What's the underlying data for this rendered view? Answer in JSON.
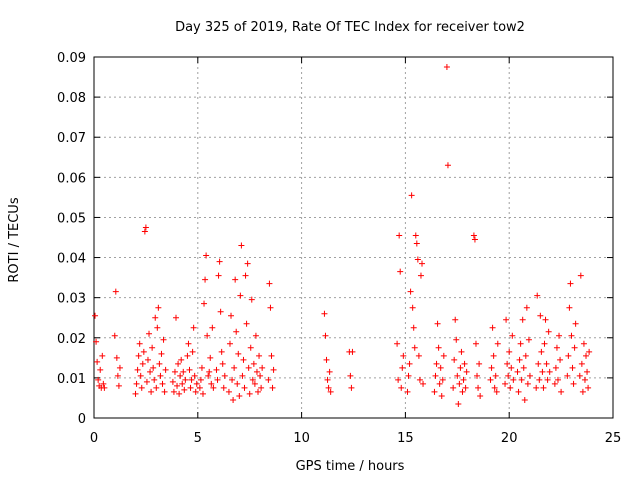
{
  "chart_data": {
    "type": "scatter",
    "title": "Day 325 of 2019, Rate Of TEC Index for receiver tow2",
    "xlabel": "GPS time / hours",
    "ylabel": "ROTI / TECUs",
    "xlim": [
      0,
      25
    ],
    "ylim": [
      0,
      0.09
    ],
    "grid": true,
    "marker": "+",
    "color": "#ff0000",
    "x_ticks": [
      {
        "value": 0,
        "label": "0"
      },
      {
        "value": 5,
        "label": "5"
      },
      {
        "value": 10,
        "label": "10"
      },
      {
        "value": 15,
        "label": "15"
      },
      {
        "value": 20,
        "label": "20"
      },
      {
        "value": 25,
        "label": "25"
      }
    ],
    "y_ticks": [
      {
        "value": 0,
        "label": "0"
      },
      {
        "value": 0.01,
        "label": "0.01"
      },
      {
        "value": 0.02,
        "label": "0.02"
      },
      {
        "value": 0.03,
        "label": "0.03"
      },
      {
        "value": 0.04,
        "label": "0.04"
      },
      {
        "value": 0.05,
        "label": "0.05"
      },
      {
        "value": 0.06,
        "label": "0.06"
      },
      {
        "value": 0.07,
        "label": "0.07"
      },
      {
        "value": 0.08,
        "label": "0.08"
      },
      {
        "value": 0.09,
        "label": "0.09"
      }
    ],
    "series": [
      {
        "name": "ROTI",
        "points": [
          [
            0.05,
            0.0255
          ],
          [
            0.1,
            0.019
          ],
          [
            0.15,
            0.014
          ],
          [
            0.2,
            0.0095
          ],
          [
            0.25,
            0.008
          ],
          [
            0.3,
            0.012
          ],
          [
            0.35,
            0.0075
          ],
          [
            0.4,
            0.0155
          ],
          [
            0.45,
            0.0085
          ],
          [
            0.5,
            0.0075
          ],
          [
            1.0,
            0.0205
          ],
          [
            1.05,
            0.0315
          ],
          [
            1.1,
            0.015
          ],
          [
            1.15,
            0.0105
          ],
          [
            1.2,
            0.008
          ],
          [
            1.25,
            0.0125
          ],
          [
            2.0,
            0.006
          ],
          [
            2.05,
            0.0085
          ],
          [
            2.1,
            0.012
          ],
          [
            2.15,
            0.0155
          ],
          [
            2.2,
            0.0185
          ],
          [
            2.25,
            0.0105
          ],
          [
            2.3,
            0.0075
          ],
          [
            2.35,
            0.0135
          ],
          [
            2.4,
            0.0165
          ],
          [
            2.45,
            0.0465
          ],
          [
            2.5,
            0.0475
          ],
          [
            2.55,
            0.009
          ],
          [
            2.6,
            0.0145
          ],
          [
            2.65,
            0.021
          ],
          [
            2.7,
            0.0115
          ],
          [
            2.75,
            0.0065
          ],
          [
            2.8,
            0.0175
          ],
          [
            2.85,
            0.0125
          ],
          [
            2.9,
            0.0095
          ],
          [
            2.95,
            0.025
          ],
          [
            3.0,
            0.0075
          ],
          [
            3.05,
            0.0225
          ],
          [
            3.1,
            0.0275
          ],
          [
            3.15,
            0.0135
          ],
          [
            3.2,
            0.0105
          ],
          [
            3.25,
            0.016
          ],
          [
            3.3,
            0.0085
          ],
          [
            3.35,
            0.0195
          ],
          [
            3.4,
            0.0065
          ],
          [
            3.45,
            0.012
          ],
          [
            3.8,
            0.009
          ],
          [
            3.85,
            0.0065
          ],
          [
            3.9,
            0.0115
          ],
          [
            3.95,
            0.025
          ],
          [
            4.0,
            0.008
          ],
          [
            4.05,
            0.0135
          ],
          [
            4.1,
            0.006
          ],
          [
            4.15,
            0.0105
          ],
          [
            4.2,
            0.0145
          ],
          [
            4.25,
            0.0085
          ],
          [
            4.3,
            0.0115
          ],
          [
            4.35,
            0.007
          ],
          [
            4.4,
            0.0095
          ],
          [
            4.5,
            0.0155
          ],
          [
            4.55,
            0.0185
          ],
          [
            4.6,
            0.012
          ],
          [
            4.65,
            0.0075
          ],
          [
            4.7,
            0.0095
          ],
          [
            4.75,
            0.0165
          ],
          [
            4.8,
            0.0225
          ],
          [
            4.85,
            0.0105
          ],
          [
            4.9,
            0.0065
          ],
          [
            4.95,
            0.0085
          ],
          [
            5.1,
            0.0075
          ],
          [
            5.15,
            0.0095
          ],
          [
            5.2,
            0.0125
          ],
          [
            5.25,
            0.006
          ],
          [
            5.3,
            0.0285
          ],
          [
            5.35,
            0.0345
          ],
          [
            5.4,
            0.0405
          ],
          [
            5.45,
            0.0205
          ],
          [
            5.5,
            0.0105
          ],
          [
            5.55,
            0.0115
          ],
          [
            5.6,
            0.015
          ],
          [
            5.65,
            0.0085
          ],
          [
            5.7,
            0.0225
          ],
          [
            5.75,
            0.0075
          ],
          [
            5.9,
            0.012
          ],
          [
            5.95,
            0.0095
          ],
          [
            6.0,
            0.0355
          ],
          [
            6.05,
            0.039
          ],
          [
            6.1,
            0.0265
          ],
          [
            6.15,
            0.0165
          ],
          [
            6.2,
            0.0135
          ],
          [
            6.25,
            0.0075
          ],
          [
            6.3,
            0.0105
          ],
          [
            6.5,
            0.0065
          ],
          [
            6.55,
            0.0185
          ],
          [
            6.6,
            0.0255
          ],
          [
            6.65,
            0.0095
          ],
          [
            6.7,
            0.0045
          ],
          [
            6.75,
            0.0125
          ],
          [
            6.8,
            0.0345
          ],
          [
            6.85,
            0.0215
          ],
          [
            6.9,
            0.0085
          ],
          [
            6.95,
            0.016
          ],
          [
            7.0,
            0.0055
          ],
          [
            7.05,
            0.0305
          ],
          [
            7.1,
            0.043
          ],
          [
            7.15,
            0.0105
          ],
          [
            7.2,
            0.0145
          ],
          [
            7.25,
            0.0075
          ],
          [
            7.3,
            0.0355
          ],
          [
            7.35,
            0.0235
          ],
          [
            7.4,
            0.0385
          ],
          [
            7.45,
            0.0125
          ],
          [
            7.5,
            0.006
          ],
          [
            7.55,
            0.0175
          ],
          [
            7.6,
            0.0295
          ],
          [
            7.65,
            0.0095
          ],
          [
            7.7,
            0.0135
          ],
          [
            7.75,
            0.0085
          ],
          [
            7.8,
            0.0205
          ],
          [
            7.85,
            0.0115
          ],
          [
            7.9,
            0.0065
          ],
          [
            7.95,
            0.0155
          ],
          [
            8.0,
            0.0105
          ],
          [
            8.05,
            0.0075
          ],
          [
            8.1,
            0.0125
          ],
          [
            8.4,
            0.0095
          ],
          [
            8.45,
            0.0335
          ],
          [
            8.5,
            0.0275
          ],
          [
            8.55,
            0.0155
          ],
          [
            8.6,
            0.0075
          ],
          [
            8.65,
            0.012
          ],
          [
            11.1,
            0.026
          ],
          [
            11.15,
            0.0205
          ],
          [
            11.2,
            0.0145
          ],
          [
            11.25,
            0.0095
          ],
          [
            11.3,
            0.0075
          ],
          [
            11.35,
            0.0115
          ],
          [
            11.4,
            0.0065
          ],
          [
            12.3,
            0.0165
          ],
          [
            12.35,
            0.0105
          ],
          [
            12.4,
            0.0075
          ],
          [
            12.45,
            0.0165
          ],
          [
            14.6,
            0.0185
          ],
          [
            14.65,
            0.0095
          ],
          [
            14.7,
            0.0455
          ],
          [
            14.75,
            0.0365
          ],
          [
            14.8,
            0.0075
          ],
          [
            14.85,
            0.0125
          ],
          [
            14.9,
            0.0155
          ],
          [
            15.1,
            0.0065
          ],
          [
            15.15,
            0.0105
          ],
          [
            15.2,
            0.0135
          ],
          [
            15.25,
            0.0315
          ],
          [
            15.3,
            0.0555
          ],
          [
            15.35,
            0.0275
          ],
          [
            15.4,
            0.0225
          ],
          [
            15.45,
            0.0175
          ],
          [
            15.5,
            0.0455
          ],
          [
            15.55,
            0.0435
          ],
          [
            15.6,
            0.0395
          ],
          [
            15.65,
            0.0155
          ],
          [
            15.7,
            0.0095
          ],
          [
            15.75,
            0.0355
          ],
          [
            15.8,
            0.0385
          ],
          [
            15.85,
            0.0085
          ],
          [
            16.4,
            0.0065
          ],
          [
            16.45,
            0.0105
          ],
          [
            16.5,
            0.0135
          ],
          [
            16.55,
            0.0235
          ],
          [
            16.6,
            0.0175
          ],
          [
            16.65,
            0.0085
          ],
          [
            16.7,
            0.0125
          ],
          [
            16.75,
            0.0055
          ],
          [
            16.8,
            0.0095
          ],
          [
            16.85,
            0.0155
          ],
          [
            17.0,
            0.0875
          ],
          [
            17.05,
            0.063
          ],
          [
            17.3,
            0.0075
          ],
          [
            17.35,
            0.0145
          ],
          [
            17.4,
            0.0245
          ],
          [
            17.45,
            0.0195
          ],
          [
            17.5,
            0.0105
          ],
          [
            17.55,
            0.0035
          ],
          [
            17.6,
            0.0085
          ],
          [
            17.65,
            0.0125
          ],
          [
            17.7,
            0.0165
          ],
          [
            17.75,
            0.0065
          ],
          [
            17.8,
            0.0095
          ],
          [
            17.85,
            0.0135
          ],
          [
            17.9,
            0.0075
          ],
          [
            17.95,
            0.0115
          ],
          [
            18.3,
            0.0455
          ],
          [
            18.35,
            0.0445
          ],
          [
            18.4,
            0.0185
          ],
          [
            18.45,
            0.0105
          ],
          [
            18.5,
            0.0075
          ],
          [
            18.55,
            0.0135
          ],
          [
            18.6,
            0.0055
          ],
          [
            19.1,
            0.0095
          ],
          [
            19.15,
            0.0125
          ],
          [
            19.2,
            0.0225
          ],
          [
            19.25,
            0.0155
          ],
          [
            19.3,
            0.0075
          ],
          [
            19.35,
            0.0105
          ],
          [
            19.4,
            0.0065
          ],
          [
            19.45,
            0.0185
          ],
          [
            19.8,
            0.0085
          ],
          [
            19.85,
            0.0245
          ],
          [
            19.9,
            0.0135
          ],
          [
            19.95,
            0.0105
          ],
          [
            20.0,
            0.0165
          ],
          [
            20.05,
            0.0075
          ],
          [
            20.1,
            0.0125
          ],
          [
            20.15,
            0.0205
          ],
          [
            20.2,
            0.0095
          ],
          [
            20.4,
            0.0115
          ],
          [
            20.45,
            0.0065
          ],
          [
            20.5,
            0.0145
          ],
          [
            20.55,
            0.0185
          ],
          [
            20.6,
            0.0095
          ],
          [
            20.65,
            0.0245
          ],
          [
            20.7,
            0.0125
          ],
          [
            20.75,
            0.0045
          ],
          [
            20.8,
            0.0155
          ],
          [
            20.85,
            0.0275
          ],
          [
            20.9,
            0.0085
          ],
          [
            20.95,
            0.0195
          ],
          [
            21.0,
            0.0105
          ],
          [
            21.3,
            0.0075
          ],
          [
            21.35,
            0.0305
          ],
          [
            21.4,
            0.0135
          ],
          [
            21.45,
            0.0095
          ],
          [
            21.5,
            0.0255
          ],
          [
            21.55,
            0.0165
          ],
          [
            21.6,
            0.0115
          ],
          [
            21.65,
            0.0075
          ],
          [
            21.7,
            0.0185
          ],
          [
            21.75,
            0.0245
          ],
          [
            21.8,
            0.0135
          ],
          [
            21.85,
            0.0095
          ],
          [
            21.9,
            0.0215
          ],
          [
            21.95,
            0.0115
          ],
          [
            22.2,
            0.0085
          ],
          [
            22.25,
            0.0125
          ],
          [
            22.3,
            0.0175
          ],
          [
            22.35,
            0.0095
          ],
          [
            22.4,
            0.0205
          ],
          [
            22.45,
            0.0145
          ],
          [
            22.5,
            0.0065
          ],
          [
            22.8,
            0.0105
          ],
          [
            22.85,
            0.0155
          ],
          [
            22.9,
            0.0275
          ],
          [
            22.95,
            0.0335
          ],
          [
            23.0,
            0.0205
          ],
          [
            23.05,
            0.0125
          ],
          [
            23.1,
            0.0085
          ],
          [
            23.15,
            0.0175
          ],
          [
            23.2,
            0.0235
          ],
          [
            23.4,
            0.0105
          ],
          [
            23.45,
            0.0355
          ],
          [
            23.5,
            0.0135
          ],
          [
            23.55,
            0.0065
          ],
          [
            23.6,
            0.0185
          ],
          [
            23.65,
            0.0095
          ],
          [
            23.7,
            0.0155
          ],
          [
            23.75,
            0.0115
          ],
          [
            23.8,
            0.0075
          ],
          [
            23.85,
            0.0165
          ]
        ]
      }
    ]
  }
}
